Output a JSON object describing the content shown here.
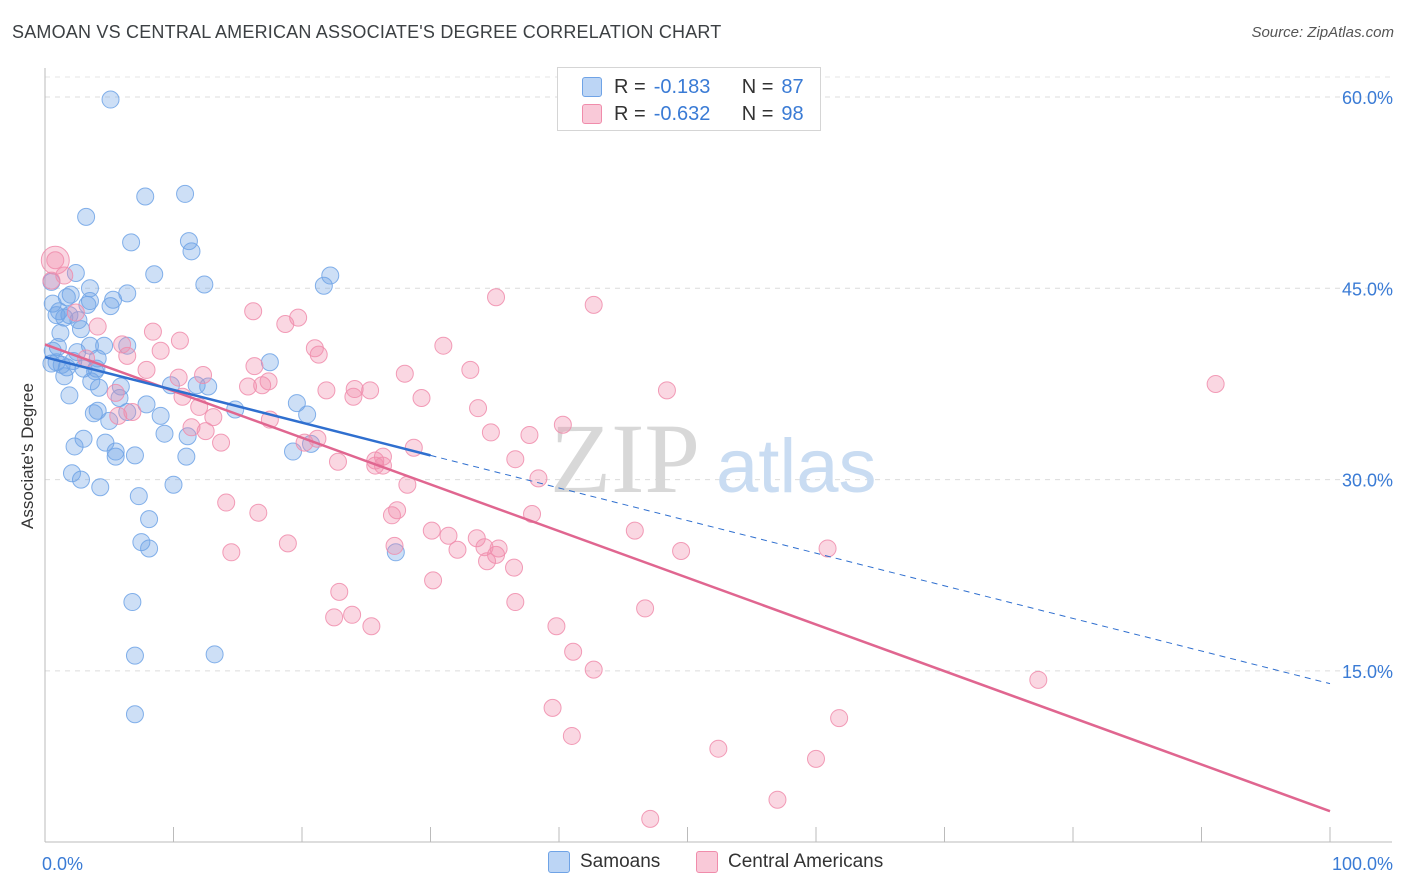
{
  "header": {
    "title": "SAMOAN VS CENTRAL AMERICAN ASSOCIATE'S DEGREE CORRELATION CHART",
    "source": "Source: ZipAtlas.com"
  },
  "legend_top": {
    "rows": [
      {
        "r_label": "R =",
        "r_value": "-0.183",
        "n_label": "N =",
        "n_value": "87"
      },
      {
        "r_label": "R =",
        "r_value": "-0.632",
        "n_label": "N =",
        "n_value": "98"
      }
    ]
  },
  "legend_bottom": {
    "samoans": "Samoans",
    "central": "Central Americans"
  },
  "watermark": {
    "zip": "ZIP",
    "atlas": "atlas"
  },
  "colors": {
    "blue": "#6fa3e6",
    "blue_line": "#2f6fcf",
    "pink": "#f08cab",
    "pink_line": "#e06690",
    "tick_text": "#3a7bd5"
  },
  "chart_data": {
    "type": "scatter",
    "xlabel": "",
    "ylabel": "Associate's Degree",
    "x_tick_labels": [
      {
        "value": 0,
        "label": "0.0%"
      },
      {
        "value": 100,
        "label": "100.0%"
      }
    ],
    "y_tick_labels": [
      {
        "value": 15,
        "label": "15.0%"
      },
      {
        "value": 30,
        "label": "30.0%"
      },
      {
        "value": 45,
        "label": "45.0%"
      },
      {
        "value": 60,
        "label": "60.0%"
      }
    ],
    "xlim": [
      0,
      100
    ],
    "ylim": [
      0,
      62
    ],
    "grid": true,
    "series": [
      {
        "name": "Samoans",
        "color": "#6fa3e6",
        "points": [
          [
            5.1,
            59.8
          ],
          [
            7.8,
            52.2
          ],
          [
            10.9,
            52.4
          ],
          [
            3.2,
            50.6
          ],
          [
            6.7,
            48.6
          ],
          [
            11.2,
            48.7
          ],
          [
            11.4,
            47.9
          ],
          [
            2.4,
            46.2
          ],
          [
            8.5,
            46.1
          ],
          [
            22.2,
            46.0
          ],
          [
            0.5,
            45.5
          ],
          [
            12.4,
            45.3
          ],
          [
            21.7,
            45.2
          ],
          [
            6.4,
            44.6
          ],
          [
            1.7,
            44.3
          ],
          [
            5.3,
            44.1
          ],
          [
            3.5,
            44.0
          ],
          [
            5.1,
            43.6
          ],
          [
            3.3,
            43.7
          ],
          [
            0.6,
            43.8
          ],
          [
            0.9,
            42.9
          ],
          [
            1.5,
            42.7
          ],
          [
            2.6,
            42.5
          ],
          [
            1.9,
            42.9
          ],
          [
            1.2,
            41.5
          ],
          [
            4.6,
            40.5
          ],
          [
            3.5,
            40.5
          ],
          [
            6.4,
            40.5
          ],
          [
            0.6,
            40.1
          ],
          [
            2.5,
            40.0
          ],
          [
            4.1,
            39.5
          ],
          [
            0.5,
            39.1
          ],
          [
            0.9,
            39.2
          ],
          [
            1.3,
            39.0
          ],
          [
            1.7,
            38.8
          ],
          [
            3.0,
            38.7
          ],
          [
            3.9,
            38.5
          ],
          [
            1.5,
            38.1
          ],
          [
            17.5,
            39.2
          ],
          [
            3.6,
            37.7
          ],
          [
            12.7,
            37.3
          ],
          [
            9.8,
            37.4
          ],
          [
            11.8,
            37.4
          ],
          [
            4.2,
            37.2
          ],
          [
            1.9,
            36.6
          ],
          [
            5.8,
            36.4
          ],
          [
            7.9,
            35.9
          ],
          [
            19.6,
            36.0
          ],
          [
            6.4,
            35.3
          ],
          [
            4.1,
            35.4
          ],
          [
            3.8,
            35.2
          ],
          [
            20.4,
            35.1
          ],
          [
            14.8,
            35.5
          ],
          [
            9.0,
            35.0
          ],
          [
            5.0,
            34.6
          ],
          [
            9.3,
            33.6
          ],
          [
            11.1,
            33.4
          ],
          [
            4.7,
            32.9
          ],
          [
            3.0,
            33.2
          ],
          [
            2.3,
            32.6
          ],
          [
            5.5,
            32.2
          ],
          [
            5.5,
            31.8
          ],
          [
            11.0,
            31.8
          ],
          [
            7.0,
            31.9
          ],
          [
            19.3,
            32.2
          ],
          [
            2.1,
            30.5
          ],
          [
            20.7,
            32.8
          ],
          [
            10.0,
            29.6
          ],
          [
            2.8,
            30.0
          ],
          [
            4.3,
            29.4
          ],
          [
            7.3,
            28.7
          ],
          [
            8.1,
            26.9
          ],
          [
            7.5,
            25.1
          ],
          [
            8.1,
            24.6
          ],
          [
            27.3,
            24.3
          ],
          [
            6.8,
            20.4
          ],
          [
            7.0,
            16.2
          ],
          [
            13.2,
            16.3
          ],
          [
            7.0,
            11.6
          ],
          [
            5.9,
            37.3
          ],
          [
            4.0,
            38.7
          ],
          [
            2.2,
            39.3
          ],
          [
            1.0,
            40.4
          ],
          [
            2.8,
            41.8
          ],
          [
            1.1,
            43.2
          ],
          [
            2.0,
            44.5
          ],
          [
            3.5,
            45.0
          ]
        ]
      },
      {
        "name": "Central Americans",
        "color": "#f08cab",
        "points": [
          [
            0.8,
            47.2
          ],
          [
            1.5,
            46.0
          ],
          [
            0.5,
            45.6
          ],
          [
            35.1,
            44.3
          ],
          [
            42.7,
            43.7
          ],
          [
            16.2,
            43.2
          ],
          [
            2.4,
            43.1
          ],
          [
            19.7,
            42.7
          ],
          [
            18.7,
            42.2
          ],
          [
            4.1,
            42.0
          ],
          [
            8.4,
            41.6
          ],
          [
            10.5,
            40.9
          ],
          [
            6.0,
            40.6
          ],
          [
            31.0,
            40.5
          ],
          [
            9.0,
            40.1
          ],
          [
            21.0,
            40.3
          ],
          [
            21.3,
            39.8
          ],
          [
            3.2,
            39.5
          ],
          [
            6.4,
            39.7
          ],
          [
            16.3,
            38.9
          ],
          [
            7.9,
            38.6
          ],
          [
            33.1,
            38.6
          ],
          [
            28.0,
            38.3
          ],
          [
            12.3,
            38.2
          ],
          [
            10.4,
            38.0
          ],
          [
            17.4,
            37.7
          ],
          [
            15.8,
            37.3
          ],
          [
            16.9,
            37.4
          ],
          [
            21.9,
            37.0
          ],
          [
            24.1,
            37.1
          ],
          [
            25.3,
            37.0
          ],
          [
            48.4,
            37.0
          ],
          [
            5.5,
            36.8
          ],
          [
            10.7,
            36.5
          ],
          [
            29.3,
            36.4
          ],
          [
            12.0,
            35.7
          ],
          [
            33.7,
            35.6
          ],
          [
            5.7,
            35.0
          ],
          [
            6.8,
            35.3
          ],
          [
            13.1,
            34.9
          ],
          [
            17.5,
            34.7
          ],
          [
            34.7,
            33.7
          ],
          [
            21.2,
            33.2
          ],
          [
            11.4,
            34.1
          ],
          [
            12.5,
            33.8
          ],
          [
            37.7,
            33.5
          ],
          [
            20.2,
            32.9
          ],
          [
            28.7,
            32.5
          ],
          [
            13.7,
            32.9
          ],
          [
            26.3,
            31.8
          ],
          [
            25.7,
            31.5
          ],
          [
            40.3,
            34.3
          ],
          [
            26.3,
            31.1
          ],
          [
            22.8,
            31.4
          ],
          [
            36.6,
            31.6
          ],
          [
            25.7,
            31.1
          ],
          [
            38.4,
            30.1
          ],
          [
            28.2,
            29.6
          ],
          [
            14.1,
            28.2
          ],
          [
            27.0,
            27.2
          ],
          [
            16.6,
            27.4
          ],
          [
            27.4,
            27.6
          ],
          [
            37.9,
            27.3
          ],
          [
            45.9,
            26.0
          ],
          [
            30.1,
            26.0
          ],
          [
            31.4,
            25.6
          ],
          [
            33.6,
            25.4
          ],
          [
            18.9,
            25.0
          ],
          [
            27.2,
            24.8
          ],
          [
            34.2,
            24.7
          ],
          [
            35.3,
            24.6
          ],
          [
            32.1,
            24.5
          ],
          [
            49.5,
            24.4
          ],
          [
            60.9,
            24.6
          ],
          [
            14.5,
            24.3
          ],
          [
            35.1,
            24.1
          ],
          [
            34.4,
            23.6
          ],
          [
            36.5,
            23.1
          ],
          [
            30.2,
            22.1
          ],
          [
            22.9,
            21.2
          ],
          [
            36.6,
            20.4
          ],
          [
            46.7,
            19.9
          ],
          [
            23.9,
            19.4
          ],
          [
            22.5,
            19.2
          ],
          [
            25.4,
            18.5
          ],
          [
            39.8,
            18.5
          ],
          [
            41.1,
            16.5
          ],
          [
            42.7,
            15.1
          ],
          [
            77.3,
            14.3
          ],
          [
            91.1,
            37.5
          ],
          [
            39.5,
            12.1
          ],
          [
            61.8,
            11.3
          ],
          [
            41.0,
            9.9
          ],
          [
            52.4,
            8.9
          ],
          [
            60.0,
            8.1
          ],
          [
            57.0,
            4.9
          ],
          [
            47.1,
            3.4
          ],
          [
            24.0,
            36.5
          ]
        ]
      }
    ],
    "trend_lines": [
      {
        "series": "Samoans",
        "solid": [
          [
            0,
            39.6
          ],
          [
            30,
            31.9
          ]
        ],
        "dashed": [
          [
            30,
            31.9
          ],
          [
            100,
            14.0
          ]
        ]
      },
      {
        "series": "Central Americans",
        "solid": [
          [
            0,
            40.6
          ],
          [
            100,
            4.0
          ]
        ]
      }
    ]
  }
}
